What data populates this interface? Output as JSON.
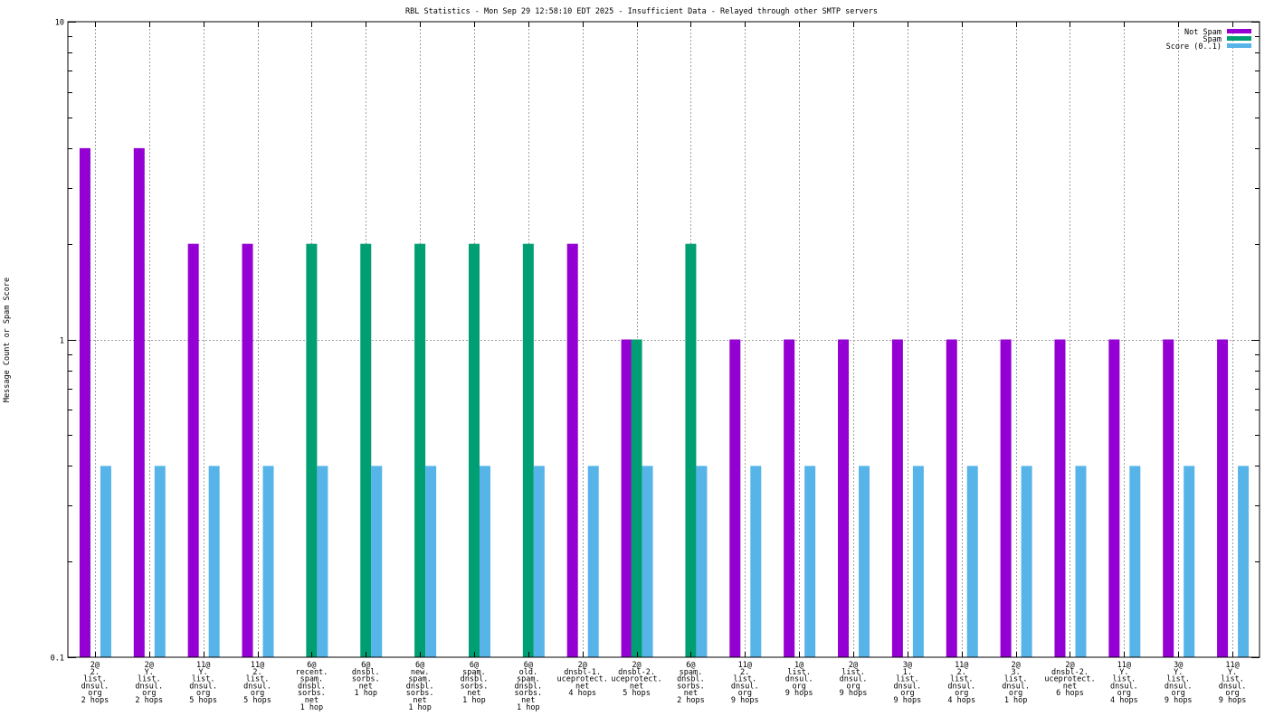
{
  "chart_data": {
    "type": "bar",
    "title": "RBL Statistics - Mon Sep 29 12:58:10 EDT 2025 - Insufficient Data - Relayed through other SMTP servers",
    "ylabel": "Message Count or Spam Score",
    "xlabel": "",
    "yscale": "log",
    "ylim": [
      0.1,
      10
    ],
    "yticks": [
      "0.1",
      "1",
      "10"
    ],
    "grid": true,
    "legend_position": "top-right",
    "categories": [
      [
        "2@",
        "2.",
        "list.",
        "dnsul.",
        "org",
        "2 hops"
      ],
      [
        "2@",
        "Y.",
        "list.",
        "dnsul.",
        "org",
        "2 hops"
      ],
      [
        "11@",
        "Y.",
        "list.",
        "dnsul.",
        "org",
        "5 hops"
      ],
      [
        "11@",
        "2.",
        "list.",
        "dnsul.",
        "org",
        "5 hops"
      ],
      [
        "6@",
        "recent.",
        "spam.",
        "dnsbl.",
        "sorbs.",
        "net",
        "1 hop"
      ],
      [
        "6@",
        "dnsbl.",
        "sorbs.",
        "net",
        "1 hop"
      ],
      [
        "6@",
        "new.",
        "spam.",
        "dnsbl.",
        "sorbs.",
        "net",
        "1 hop"
      ],
      [
        "6@",
        "spam.",
        "dnsbl.",
        "sorbs.",
        "net",
        "1 hop"
      ],
      [
        "6@",
        "old.",
        "spam.",
        "dnsbl.",
        "sorbs.",
        "net",
        "1 hop"
      ],
      [
        "2@",
        "dnsbl-1.",
        "uceprotect.",
        "net",
        "4 hops"
      ],
      [
        "2@",
        "dnsbl-2.",
        "uceprotect.",
        "net",
        "5 hops"
      ],
      [
        "6@",
        "spam.",
        "dnsbl.",
        "sorbs.",
        "net",
        "2 hops"
      ],
      [
        "11@",
        "2.",
        "list.",
        "dnsul.",
        "org",
        "9 hops"
      ],
      [
        "1@",
        "list.",
        "dnsul.",
        "org",
        "9 hops"
      ],
      [
        "2@",
        "list.",
        "dnsul.",
        "org",
        "9 hops"
      ],
      [
        "3@",
        "1.",
        "list.",
        "dnsul.",
        "org",
        "9 hops"
      ],
      [
        "11@",
        "2.",
        "list.",
        "dnsul.",
        "org",
        "4 hops"
      ],
      [
        "2@",
        "3.",
        "list.",
        "dnsul.",
        "org",
        "1 hop"
      ],
      [
        "2@",
        "dnsbl-2.",
        "uceprotect.",
        "net",
        "6 hops"
      ],
      [
        "11@",
        "Y.",
        "list.",
        "dnsul.",
        "org",
        "4 hops"
      ],
      [
        "3@",
        "Y.",
        "list.",
        "dnsul.",
        "org",
        "9 hops"
      ],
      [
        "11@",
        "Y.",
        "list.",
        "dnsul.",
        "org",
        "9 hops"
      ]
    ],
    "series": [
      {
        "name": "Not Spam",
        "color": "#9400d3",
        "values": [
          4,
          4,
          2,
          2,
          null,
          null,
          null,
          null,
          null,
          2,
          1,
          null,
          1,
          1,
          1,
          1,
          1,
          1,
          1,
          1,
          1,
          1
        ]
      },
      {
        "name": "Spam",
        "color": "#009e73",
        "values": [
          null,
          null,
          null,
          null,
          2,
          2,
          2,
          2,
          2,
          null,
          1,
          2,
          null,
          null,
          null,
          null,
          null,
          null,
          null,
          null,
          null,
          null
        ]
      },
      {
        "name": "Score (0..1)",
        "color": "#56b4e9",
        "values": [
          0.4,
          0.4,
          0.4,
          0.4,
          0.4,
          0.4,
          0.4,
          0.4,
          0.4,
          0.4,
          0.4,
          0.4,
          0.4,
          0.4,
          0.4,
          0.4,
          0.4,
          0.4,
          0.4,
          0.4,
          0.4,
          0.4
        ]
      }
    ]
  }
}
